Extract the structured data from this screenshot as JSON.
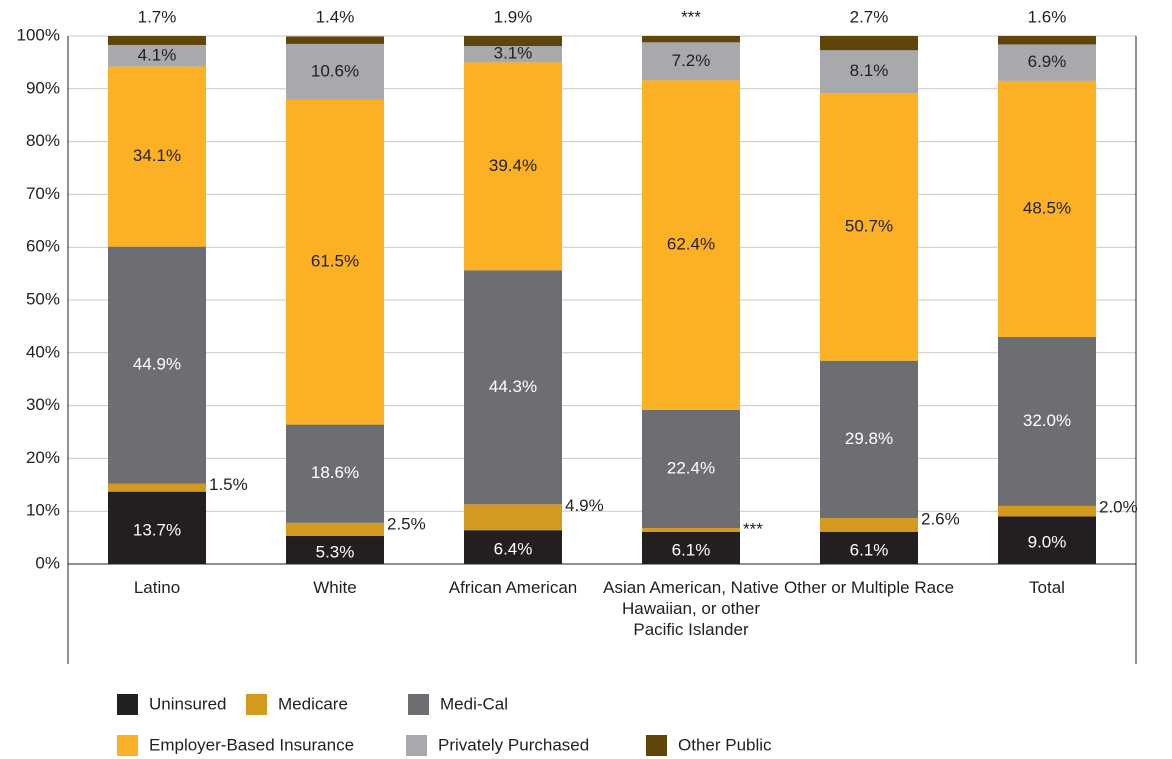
{
  "chart_data": {
    "type": "stacked_bar",
    "categories": [
      "Latino",
      "White",
      "African American",
      "Asian American, Native Hawaiian, or other Pacific Islander",
      "Other or Multiple Race",
      "Total"
    ],
    "series": [
      {
        "name": "Uninsured",
        "color": "#231f20",
        "values": [
          13.7,
          5.3,
          6.4,
          6.1,
          6.1,
          9.0
        ],
        "value_labels": [
          "13.7%",
          "5.3%",
          "6.4%",
          "6.1%",
          "6.1%",
          "9.0%"
        ]
      },
      {
        "name": "Medicare",
        "color": "#d39a1f",
        "values": [
          1.5,
          2.5,
          4.9,
          0.7,
          2.6,
          2.0
        ],
        "value_labels": [
          "1.5%",
          "2.5%",
          "4.9%",
          "***",
          "2.6%",
          "2.0%"
        ]
      },
      {
        "name": "Medi-Cal",
        "color": "#6d6e71",
        "values": [
          44.9,
          18.6,
          44.3,
          22.4,
          29.8,
          32.0
        ],
        "value_labels": [
          "44.9%",
          "18.6%",
          "44.3%",
          "22.4%",
          "29.8%",
          "32.0%"
        ]
      },
      {
        "name": "Employer-Based Insurance",
        "color": "#fbb123",
        "values": [
          34.1,
          61.5,
          39.4,
          62.4,
          50.7,
          48.5
        ],
        "value_labels": [
          "34.1%",
          "61.5%",
          "39.4%",
          "62.4%",
          "50.7%",
          "48.5%"
        ]
      },
      {
        "name": "Privately Purchased",
        "color": "#a7a9ac",
        "values": [
          4.1,
          10.6,
          3.1,
          7.2,
          8.1,
          6.9
        ],
        "value_labels": [
          "4.1%",
          "10.6%",
          "3.1%",
          "7.2%",
          "8.1%",
          "6.9%"
        ]
      },
      {
        "name": "Other Public",
        "color": "#5f4509",
        "values": [
          1.7,
          1.4,
          1.9,
          1.2,
          2.7,
          1.6
        ],
        "value_labels": [
          "1.7%",
          "1.4%",
          "1.9%",
          "***",
          "2.7%",
          "1.6%"
        ]
      }
    ],
    "ylim": [
      0,
      100
    ],
    "yticks": [
      {
        "value": 0,
        "label": "0%"
      },
      {
        "value": 10,
        "label": "10%"
      },
      {
        "value": 20,
        "label": "20%"
      },
      {
        "value": 30,
        "label": "30%"
      },
      {
        "value": 40,
        "label": "40%"
      },
      {
        "value": 50,
        "label": "50%"
      },
      {
        "value": 60,
        "label": "60%"
      },
      {
        "value": 70,
        "label": "70%"
      },
      {
        "value": 80,
        "label": "80%"
      },
      {
        "value": 90,
        "label": "90%"
      },
      {
        "value": 100,
        "label": "100%"
      }
    ],
    "grid": true
  }
}
